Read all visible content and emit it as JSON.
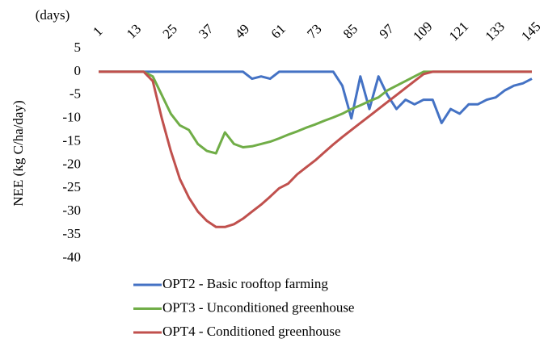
{
  "chart_data": {
    "type": "line",
    "x_label": "(days)",
    "y_label": "NEE (kg C/ha/day)",
    "x": [
      1,
      4,
      7,
      10,
      13,
      16,
      19,
      22,
      25,
      28,
      31,
      34,
      37,
      40,
      43,
      46,
      49,
      52,
      55,
      58,
      61,
      64,
      67,
      70,
      73,
      76,
      79,
      82,
      85,
      88,
      91,
      94,
      97,
      100,
      103,
      106,
      109,
      112,
      115,
      118,
      121,
      124,
      127,
      130,
      133,
      136,
      139,
      142,
      145
    ],
    "xlim": [
      1,
      145
    ],
    "xticks": [
      1,
      13,
      25,
      37,
      49,
      61,
      73,
      85,
      97,
      109,
      121,
      133,
      145
    ],
    "ylim": [
      -40,
      5
    ],
    "yticks": [
      -40,
      -35,
      -30,
      -25,
      -20,
      -15,
      -10,
      -5,
      0,
      5
    ],
    "series": [
      {
        "name": "OPT2 - Basic rooftop farming",
        "color": "#4472c4",
        "values": [
          0,
          0,
          0,
          0,
          0,
          0,
          0,
          0,
          0,
          0,
          0,
          0,
          0,
          0,
          0,
          0,
          0,
          -1.5,
          -1,
          -1.5,
          0,
          0,
          0,
          0,
          0,
          0,
          0,
          -3,
          -10,
          -1,
          -8,
          -1,
          -5,
          -8,
          -6,
          -7,
          -6,
          -6,
          -11,
          -8,
          -9,
          -7,
          -7,
          -6,
          -5.5,
          -4,
          -3,
          -2.5,
          -1.5
        ]
      },
      {
        "name": "OPT3 - Unconditioned greenhouse",
        "color": "#70ad47",
        "values": [
          0,
          0,
          0,
          0,
          0,
          0,
          -1,
          -5,
          -9,
          -11.5,
          -12.5,
          -15.5,
          -17,
          -17.5,
          -13,
          -15.5,
          -16.2,
          -16,
          -15.5,
          -15,
          -14.3,
          -13.5,
          -12.8,
          -12,
          -11.3,
          -10.5,
          -9.8,
          -9,
          -8,
          -7.2,
          -6.3,
          -5.5,
          -4,
          -3,
          -2,
          -1,
          0,
          0,
          0,
          0,
          0,
          0,
          0,
          0,
          0,
          0,
          0,
          0,
          0
        ]
      },
      {
        "name": "OPT4 - Conditioned greenhouse",
        "color": "#c0504d",
        "values": [
          0,
          0,
          0,
          0,
          0,
          0,
          -2,
          -10,
          -17,
          -23,
          -27,
          -30,
          -32,
          -33.3,
          -33.3,
          -32.7,
          -31.5,
          -30,
          -28.5,
          -26.8,
          -25,
          -24,
          -22,
          -20.5,
          -19,
          -17.3,
          -15.6,
          -14,
          -12.5,
          -11,
          -9.5,
          -8,
          -6.5,
          -5,
          -3.5,
          -2,
          -0.5,
          0,
          0,
          0,
          0,
          0,
          0,
          0,
          0,
          0,
          0,
          0,
          0
        ]
      }
    ]
  }
}
